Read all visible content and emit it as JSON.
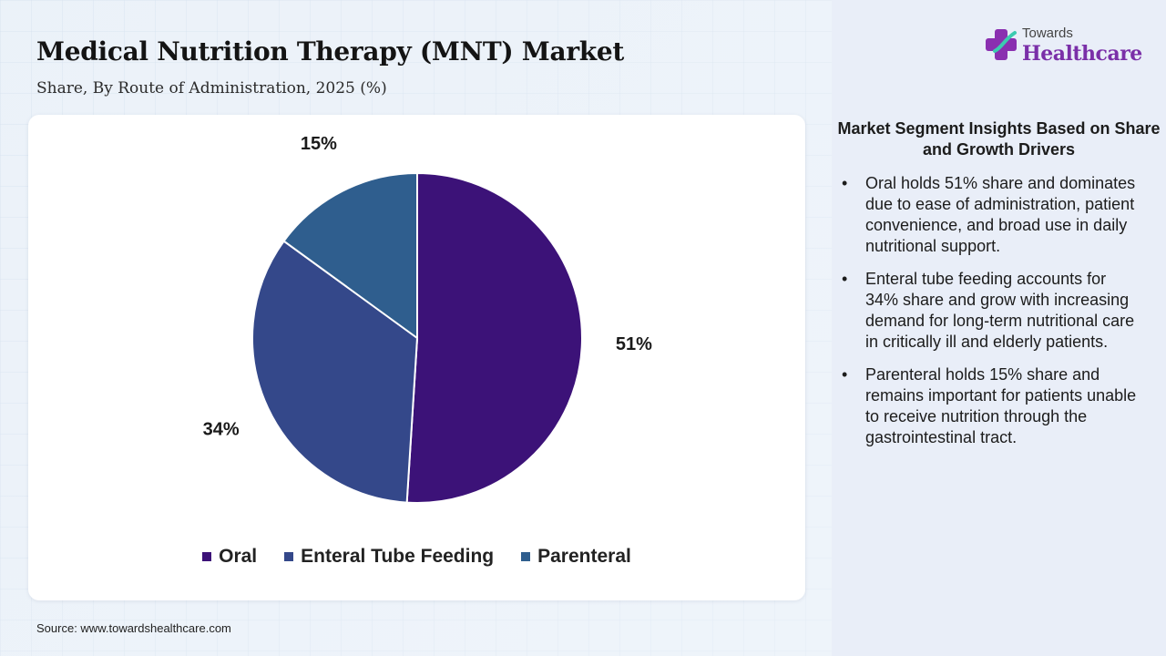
{
  "title": "Medical Nutrition Therapy (MNT) Market",
  "subtitle": "Share, By Route of Administration, 2025 (%)",
  "source": "Source: www.towardshealthcare.com",
  "logo": {
    "top": "Towards",
    "main": "Healthcare"
  },
  "chart_data": {
    "type": "pie",
    "title": "Medical Nutrition Therapy (MNT) Market",
    "subtitle": "Share, By Route of Administration, 2025 (%)",
    "unit": "%",
    "categories": [
      "Oral",
      "Enteral Tube Feeding",
      "Parenteral"
    ],
    "values": [
      51,
      34,
      15
    ],
    "labels": [
      "51%",
      "34%",
      "15%"
    ],
    "colors": [
      "#3c1278",
      "#34488a",
      "#2f5e8e"
    ],
    "legend_position": "bottom"
  },
  "insights": {
    "heading": "Market Segment Insights Based on Share and Growth Drivers",
    "items": [
      "Oral holds 51% share and dominates due to ease of administration, patient convenience, and broad use in daily nutritional support.",
      "Enteral tube feeding accounts for 34% share and grow with increasing demand for long-term nutritional care in critically ill and elderly patients.",
      "Parenteral holds 15% share and remains important for patients unable to receive nutrition through the gastrointestinal tract."
    ]
  }
}
